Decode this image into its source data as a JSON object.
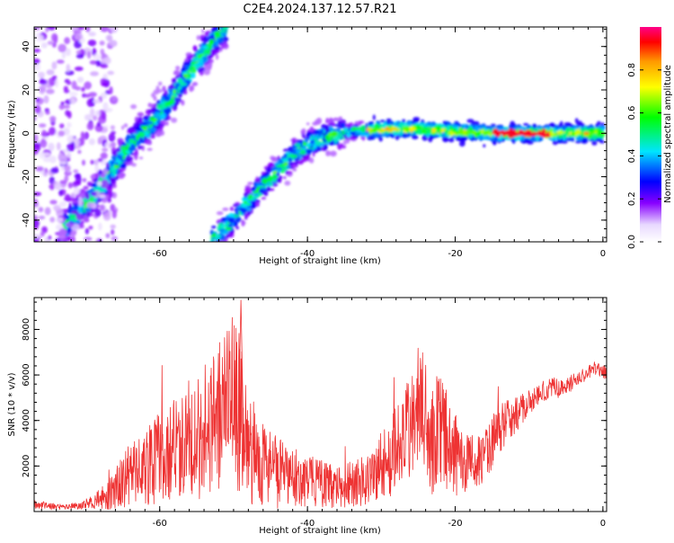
{
  "title": "C2E4.2024.137.12.57.R21",
  "chart_data": [
    {
      "type": "heatmap",
      "xlabel": "Height of straight line (km)",
      "ylabel": "Frequency (Hz)",
      "xlim": [
        -77,
        0.5
      ],
      "ylim": [
        -50,
        49
      ],
      "xticks": [
        -60,
        -40,
        -20,
        0
      ],
      "yticks": [
        -40,
        -20,
        0,
        20,
        40
      ],
      "colorbar": {
        "label": "Normalized spectral amplitude",
        "range": [
          0,
          1
        ],
        "ticks": [
          0.0,
          0.2,
          0.4,
          0.6,
          0.8
        ],
        "tick_labels": [
          "0.0",
          "0.2",
          "0.4",
          "0.6",
          "0.8"
        ]
      },
      "features": [
        {
          "kind": "ridge",
          "points": [
            [
              -73,
              -43
            ],
            [
              -70,
              -33
            ],
            [
              -67,
              -20
            ],
            [
              -64,
              -5
            ],
            [
              -61,
              5
            ],
            [
              -58,
              18
            ],
            [
              -55,
              33
            ],
            [
              -52,
              46
            ],
            [
              -51,
              49
            ]
          ]
        },
        {
          "kind": "ridge",
          "points": [
            [
              -53,
              -49
            ],
            [
              -50,
              -40
            ],
            [
              -47,
              -28
            ],
            [
              -44,
              -17
            ],
            [
              -41,
              -7
            ],
            [
              -38,
              -2
            ],
            [
              -34,
              1
            ],
            [
              -30,
              2
            ],
            [
              -25,
              2
            ],
            [
              -20,
              1
            ],
            [
              -15,
              0
            ],
            [
              -10,
              0
            ],
            [
              -5,
              0
            ],
            [
              0,
              0
            ]
          ]
        },
        {
          "kind": "noise",
          "x_range": [
            -77,
            -66
          ],
          "y_range": [
            -50,
            49
          ]
        }
      ]
    },
    {
      "type": "line",
      "xlabel": "Height of straight line (km)",
      "ylabel": "SNR (10 * v/v)",
      "xlim": [
        -77,
        0.5
      ],
      "ylim": [
        0,
        9400
      ],
      "xticks": [
        -60,
        -40,
        -20,
        0
      ],
      "yticks": [
        2000,
        4000,
        6000,
        8000
      ],
      "series": [
        {
          "color": "#ee3333",
          "x": [
            -77,
            -74,
            -71,
            -69,
            -67.5,
            -66,
            -64.5,
            -63,
            -61.5,
            -60,
            -58.5,
            -57,
            -55.5,
            -54,
            -52.5,
            -51,
            -50,
            -49,
            -48,
            -46.5,
            -45,
            -43.5,
            -42,
            -40.5,
            -39,
            -37.5,
            -36,
            -34.5,
            -33,
            -31.5,
            -30,
            -28.5,
            -27,
            -26,
            -25,
            -24,
            -23,
            -22,
            -21,
            -20,
            -19,
            -18,
            -17,
            -16,
            -15,
            -14,
            -13,
            -12,
            -11,
            -10,
            -9,
            -8,
            -7,
            -6,
            -5,
            -4,
            -3,
            -2,
            -1,
            0,
            0.5
          ],
          "y": [
            300,
            200,
            250,
            400,
            600,
            1000,
            1500,
            1800,
            2000,
            2400,
            2600,
            3000,
            3200,
            3500,
            4000,
            4500,
            5000,
            4000,
            2800,
            2300,
            2000,
            1600,
            1500,
            1400,
            1300,
            1200,
            1000,
            1200,
            1300,
            1500,
            2000,
            2500,
            3000,
            3800,
            4500,
            4000,
            3200,
            3800,
            3000,
            2500,
            2300,
            2100,
            2200,
            2400,
            3000,
            3600,
            4000,
            4200,
            4500,
            4800,
            5000,
            5300,
            5500,
            5400,
            5500,
            5700,
            5900,
            6100,
            6300,
            6200,
            6000
          ],
          "amp": [
            200,
            150,
            150,
            300,
            600,
            900,
            1300,
            1500,
            1800,
            2000,
            2200,
            2500,
            2800,
            3000,
            3300,
            3500,
            3800,
            3500,
            2500,
            2000,
            1800,
            1500,
            1300,
            1200,
            1100,
            1000,
            900,
            1000,
            1100,
            1300,
            1600,
            1800,
            2200,
            2800,
            3000,
            2800,
            2500,
            2500,
            2200,
            1800,
            1600,
            1200,
            1100,
            1100,
            1200,
            1100,
            900,
            800,
            700,
            600,
            500,
            500,
            450,
            400,
            400,
            350,
            300,
            300,
            300,
            300,
            300
          ]
        }
      ]
    }
  ]
}
